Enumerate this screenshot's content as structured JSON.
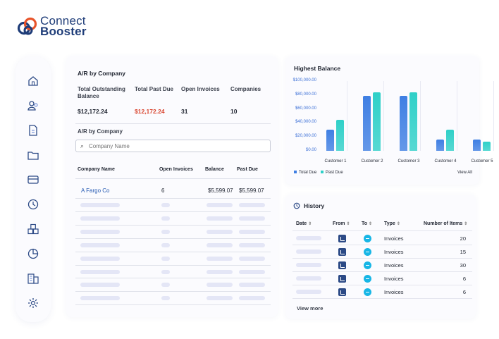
{
  "brand": {
    "line1": "Connect",
    "line2": "Booster"
  },
  "sidebar": {
    "icons": [
      "home-icon",
      "users-icon",
      "document-icon",
      "folder-icon",
      "card-icon",
      "clock-icon",
      "boxes-icon",
      "pie-chart-icon",
      "building-icon",
      "gear-icon"
    ]
  },
  "ar": {
    "title": "A/R by Company",
    "labels": {
      "total_outstanding": "Total Outstanding Balance",
      "total_past_due": "Total Past Due",
      "open_invoices": "Open Invoices",
      "companies": "Companies"
    },
    "values": {
      "total_outstanding": "$12,172.24",
      "total_past_due": "$12,172.24",
      "open_invoices": "31",
      "companies": "10"
    },
    "subtitle": "A/R by Company",
    "search_placeholder": "Company Name",
    "columns": {
      "company": "Company Name",
      "open": "Open Invoices",
      "balance": "Balance",
      "past_due": "Past Due"
    },
    "rows": [
      {
        "company": "A Fargo Co",
        "open": "6",
        "balance": "$5,599.07",
        "past_due": "$5,599.07"
      }
    ]
  },
  "highest_balance": {
    "title": "Highest Balance",
    "view_all": "View All",
    "chart_data": {
      "type": "bar",
      "title": "Highest Balance",
      "categories": [
        "Customer 1",
        "Customer 2",
        "Customer 3",
        "Customer 4",
        "Customer 5"
      ],
      "series": [
        {
          "name": "Total Due",
          "values": [
            30000,
            79000,
            79000,
            16500,
            16500
          ]
        },
        {
          "name": "Past Due",
          "values": [
            44000,
            84000,
            84000,
            30000,
            13500
          ]
        }
      ],
      "yticks": [
        "$0.00",
        "$20,000.00",
        "$40,000.00",
        "$60,000.00",
        "$80,000.00",
        "$100,000.00"
      ],
      "ylim": [
        0,
        100000
      ],
      "legend": "bottom-left",
      "colors": {
        "total_due": "#3f7fe3",
        "past_due": "#2fd0c8"
      }
    }
  },
  "history": {
    "title": "History",
    "columns": {
      "date": "Date",
      "from": "From",
      "to": "To",
      "type": "Type",
      "items": "Number of Items"
    },
    "rows": [
      {
        "type": "Invoices",
        "items": "20"
      },
      {
        "type": "Invoices",
        "items": "15"
      },
      {
        "type": "Invoices",
        "items": "30"
      },
      {
        "type": "Invoices",
        "items": "6"
      },
      {
        "type": "Invoices",
        "items": "6"
      }
    ],
    "view_more": "View more"
  }
}
